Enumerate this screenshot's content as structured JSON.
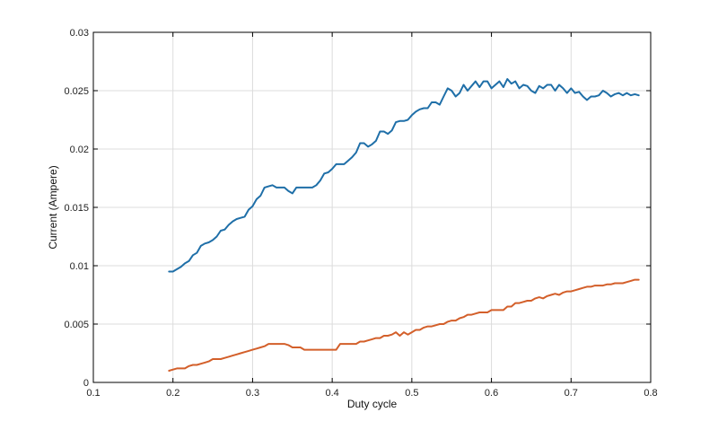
{
  "chart_data": {
    "type": "line",
    "title": "",
    "xlabel": "Duty cycle",
    "ylabel": "Current (Ampere)",
    "xlim": [
      0.1,
      0.8
    ],
    "ylim": [
      0,
      0.03
    ],
    "grid": true,
    "x_ticks": [
      0.1,
      0.2,
      0.3,
      0.4,
      0.5,
      0.6,
      0.7,
      0.8
    ],
    "x_tick_labels": [
      "0.1",
      "0.2",
      "0.3",
      "0.4",
      "0.5",
      "0.6",
      "0.7",
      "0.8"
    ],
    "y_ticks": [
      0,
      0.005,
      0.01,
      0.015,
      0.02,
      0.025,
      0.03
    ],
    "y_tick_labels": [
      "0",
      "0.005",
      "0.01",
      "0.015",
      "0.02",
      "0.025",
      "0.03"
    ],
    "series": [
      {
        "color": "#1f6fa8",
        "x": [
          0.195,
          0.2,
          0.205,
          0.21,
          0.215,
          0.22,
          0.225,
          0.23,
          0.235,
          0.24,
          0.245,
          0.25,
          0.255,
          0.26,
          0.265,
          0.27,
          0.275,
          0.28,
          0.285,
          0.29,
          0.295,
          0.3,
          0.305,
          0.31,
          0.315,
          0.32,
          0.325,
          0.33,
          0.335,
          0.34,
          0.345,
          0.35,
          0.355,
          0.36,
          0.365,
          0.37,
          0.375,
          0.38,
          0.385,
          0.39,
          0.395,
          0.4,
          0.405,
          0.41,
          0.415,
          0.42,
          0.425,
          0.43,
          0.435,
          0.44,
          0.445,
          0.45,
          0.455,
          0.46,
          0.465,
          0.47,
          0.475,
          0.48,
          0.485,
          0.49,
          0.495,
          0.5,
          0.505,
          0.51,
          0.515,
          0.52,
          0.525,
          0.53,
          0.535,
          0.54,
          0.545,
          0.55,
          0.555,
          0.56,
          0.565,
          0.57,
          0.575,
          0.58,
          0.585,
          0.59,
          0.595,
          0.6,
          0.605,
          0.61,
          0.615,
          0.62,
          0.625,
          0.63,
          0.635,
          0.64,
          0.645,
          0.65,
          0.655,
          0.66,
          0.665,
          0.67,
          0.675,
          0.68,
          0.685,
          0.69,
          0.695,
          0.7,
          0.705,
          0.71,
          0.715,
          0.72,
          0.725,
          0.73,
          0.735,
          0.74,
          0.745,
          0.75,
          0.755,
          0.76,
          0.765,
          0.77,
          0.775,
          0.78,
          0.785
        ],
        "values": [
          0.0095,
          0.0095,
          0.0097,
          0.0099,
          0.0102,
          0.0104,
          0.0109,
          0.0111,
          0.0117,
          0.0119,
          0.012,
          0.0122,
          0.0125,
          0.013,
          0.0131,
          0.0135,
          0.0138,
          0.014,
          0.0141,
          0.0142,
          0.0148,
          0.0151,
          0.0157,
          0.016,
          0.0167,
          0.0168,
          0.0169,
          0.0167,
          0.0167,
          0.0167,
          0.0164,
          0.0162,
          0.0167,
          0.0167,
          0.0167,
          0.0167,
          0.0167,
          0.0169,
          0.0173,
          0.0179,
          0.018,
          0.0183,
          0.0187,
          0.0187,
          0.0187,
          0.019,
          0.0193,
          0.0197,
          0.0205,
          0.0205,
          0.0202,
          0.0204,
          0.0207,
          0.0215,
          0.0215,
          0.0213,
          0.0216,
          0.0223,
          0.0224,
          0.0224,
          0.0225,
          0.0229,
          0.0232,
          0.0234,
          0.0235,
          0.0235,
          0.024,
          0.024,
          0.0238,
          0.0245,
          0.0252,
          0.025,
          0.0245,
          0.0248,
          0.0255,
          0.025,
          0.0254,
          0.0258,
          0.0253,
          0.0258,
          0.0258,
          0.0252,
          0.0255,
          0.0258,
          0.0253,
          0.026,
          0.0256,
          0.0258,
          0.0252,
          0.0255,
          0.0254,
          0.025,
          0.0248,
          0.0254,
          0.0252,
          0.0255,
          0.0255,
          0.025,
          0.0255,
          0.0252,
          0.0248,
          0.0252,
          0.0248,
          0.0249,
          0.0245,
          0.0242,
          0.0245,
          0.0245,
          0.0246,
          0.025,
          0.0248,
          0.0245,
          0.0247,
          0.0248,
          0.0246,
          0.0248,
          0.0246,
          0.0247,
          0.0246
        ]
      },
      {
        "color": "#d35f2a",
        "x": [
          0.195,
          0.2,
          0.205,
          0.21,
          0.215,
          0.22,
          0.225,
          0.23,
          0.235,
          0.24,
          0.245,
          0.25,
          0.255,
          0.26,
          0.265,
          0.27,
          0.275,
          0.28,
          0.285,
          0.29,
          0.295,
          0.3,
          0.305,
          0.31,
          0.315,
          0.32,
          0.325,
          0.33,
          0.335,
          0.34,
          0.345,
          0.35,
          0.355,
          0.36,
          0.365,
          0.37,
          0.375,
          0.38,
          0.385,
          0.39,
          0.395,
          0.4,
          0.405,
          0.41,
          0.415,
          0.42,
          0.425,
          0.43,
          0.435,
          0.44,
          0.445,
          0.45,
          0.455,
          0.46,
          0.465,
          0.47,
          0.475,
          0.48,
          0.485,
          0.49,
          0.495,
          0.5,
          0.505,
          0.51,
          0.515,
          0.52,
          0.525,
          0.53,
          0.535,
          0.54,
          0.545,
          0.55,
          0.555,
          0.56,
          0.565,
          0.57,
          0.575,
          0.58,
          0.585,
          0.59,
          0.595,
          0.6,
          0.605,
          0.61,
          0.615,
          0.62,
          0.625,
          0.63,
          0.635,
          0.64,
          0.645,
          0.65,
          0.655,
          0.66,
          0.665,
          0.67,
          0.675,
          0.68,
          0.685,
          0.69,
          0.695,
          0.7,
          0.705,
          0.71,
          0.715,
          0.72,
          0.725,
          0.73,
          0.735,
          0.74,
          0.745,
          0.75,
          0.755,
          0.76,
          0.765,
          0.77,
          0.775,
          0.78,
          0.785
        ],
        "values": [
          0.001,
          0.0011,
          0.0012,
          0.0012,
          0.0012,
          0.0014,
          0.0015,
          0.0015,
          0.0016,
          0.0017,
          0.0018,
          0.002,
          0.002,
          0.002,
          0.0021,
          0.0022,
          0.0023,
          0.0024,
          0.0025,
          0.0026,
          0.0027,
          0.0028,
          0.0029,
          0.003,
          0.0031,
          0.0033,
          0.0033,
          0.0033,
          0.0033,
          0.0033,
          0.0032,
          0.003,
          0.003,
          0.003,
          0.0028,
          0.0028,
          0.0028,
          0.0028,
          0.0028,
          0.0028,
          0.0028,
          0.0028,
          0.0028,
          0.0033,
          0.0033,
          0.0033,
          0.0033,
          0.0033,
          0.0035,
          0.0035,
          0.0036,
          0.0037,
          0.0038,
          0.0038,
          0.004,
          0.004,
          0.0041,
          0.0043,
          0.004,
          0.0043,
          0.0041,
          0.0043,
          0.0045,
          0.0045,
          0.0047,
          0.0048,
          0.0048,
          0.0049,
          0.005,
          0.005,
          0.0052,
          0.0053,
          0.0053,
          0.0055,
          0.0056,
          0.0058,
          0.0058,
          0.0059,
          0.006,
          0.006,
          0.006,
          0.0062,
          0.0062,
          0.0062,
          0.0062,
          0.0065,
          0.0065,
          0.0068,
          0.0068,
          0.0069,
          0.007,
          0.007,
          0.0072,
          0.0073,
          0.0072,
          0.0074,
          0.0075,
          0.0076,
          0.0075,
          0.0077,
          0.0078,
          0.0078,
          0.0079,
          0.008,
          0.0081,
          0.0082,
          0.0082,
          0.0083,
          0.0083,
          0.0083,
          0.0084,
          0.0084,
          0.0085,
          0.0085,
          0.0085,
          0.0086,
          0.0087,
          0.0088,
          0.0088
        ]
      }
    ]
  }
}
